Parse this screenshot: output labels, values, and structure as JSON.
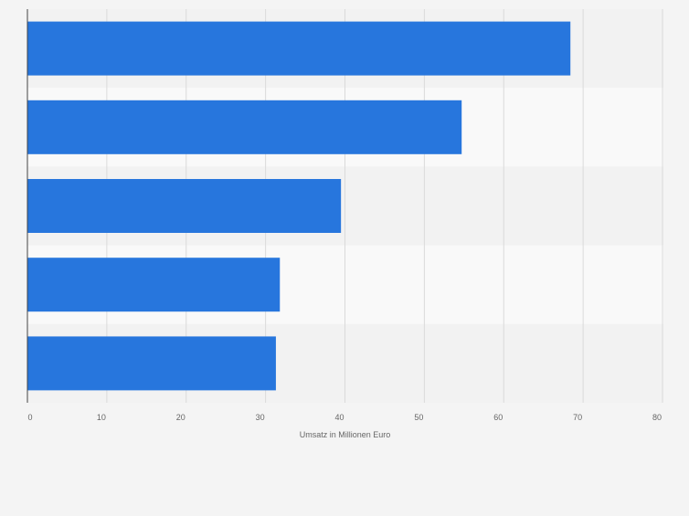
{
  "chart_data": {
    "type": "bar",
    "orientation": "horizontal",
    "categories": [
      "",
      "",
      "",
      "",
      ""
    ],
    "values": [
      68.4,
      54.7,
      39.5,
      31.8,
      31.3
    ],
    "xlabel": "Umsatz in Millionen Euro",
    "ylabel": "",
    "xlim": [
      0,
      80
    ],
    "ticks": [
      0,
      10,
      20,
      30,
      40,
      50,
      60,
      70,
      80
    ],
    "tick_labels": [
      "0",
      "10",
      "20",
      "30",
      "40",
      "50",
      "60",
      "70",
      "80"
    ],
    "grid": true,
    "legend": "none",
    "colors": {
      "bar": "#2776dd",
      "band_dark": "#f2f2f2",
      "band_light": "#f9f9f9",
      "grid": "#dadada",
      "axis": "#444444",
      "text": "#666666"
    }
  }
}
